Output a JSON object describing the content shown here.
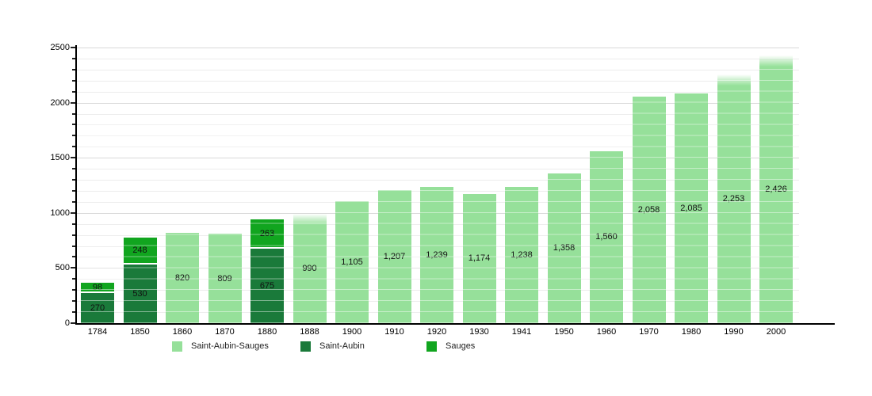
{
  "page": {
    "background": "#ffffff"
  },
  "colors": {
    "axis": "#000000",
    "grid_minor": "#ededed",
    "grid_major": "#d9d9d9",
    "value_label": "#111111",
    "tick_label": "#000000"
  },
  "chart_data": {
    "type": "bar",
    "stacked": true,
    "title": "",
    "xlabel": "",
    "ylabel": "",
    "categories": [
      "1784",
      "1850",
      "1860",
      "1870",
      "1880",
      "1888",
      "1900",
      "1910",
      "1920",
      "1930",
      "1941",
      "1950",
      "1960",
      "1970",
      "1980",
      "1990",
      "2000"
    ],
    "series": [
      {
        "name": "Saint-Aubin-Sauges",
        "color": "#96e09a",
        "values": [
          null,
          null,
          820,
          809,
          null,
          990,
          1105,
          1207,
          1239,
          1174,
          1238,
          1358,
          1560,
          2058,
          2085,
          2253,
          2426
        ]
      },
      {
        "name": "Saint-Aubin",
        "color": "#1a7a3a",
        "values": [
          270,
          530,
          null,
          null,
          675,
          null,
          null,
          null,
          null,
          null,
          null,
          null,
          null,
          null,
          null,
          null,
          null
        ]
      },
      {
        "name": "Sauges",
        "color": "#11a51f",
        "values": [
          98,
          248,
          null,
          null,
          263,
          null,
          null,
          null,
          null,
          null,
          null,
          null,
          null,
          null,
          null,
          null,
          null
        ]
      }
    ],
    "totals": [
      368,
      778,
      820,
      809,
      938,
      990,
      1105,
      1207,
      1239,
      1174,
      1238,
      1358,
      1560,
      2058,
      2085,
      2253,
      2426
    ],
    "y_axis": {
      "min": 0,
      "max": 2500,
      "major_step": 500,
      "minor_step": 100,
      "tick_labels": [
        "0",
        "500",
        "1000",
        "1500",
        "2000",
        "2500"
      ]
    },
    "x_axis": {
      "tick_labels": [
        "1784",
        "1850",
        "1860",
        "1870",
        "1880",
        "1888",
        "1900",
        "1910",
        "1920",
        "1930",
        "1941",
        "1950",
        "1960",
        "1970",
        "1980",
        "1990",
        "2000"
      ]
    },
    "legend": {
      "position": "bottom",
      "entries": [
        "Saint-Aubin-Sauges",
        "Saint-Aubin",
        "Sauges"
      ]
    },
    "grid": true,
    "value_labels_visible": true,
    "soft_top_categories": [
      "1888",
      "1990",
      "2000"
    ]
  }
}
